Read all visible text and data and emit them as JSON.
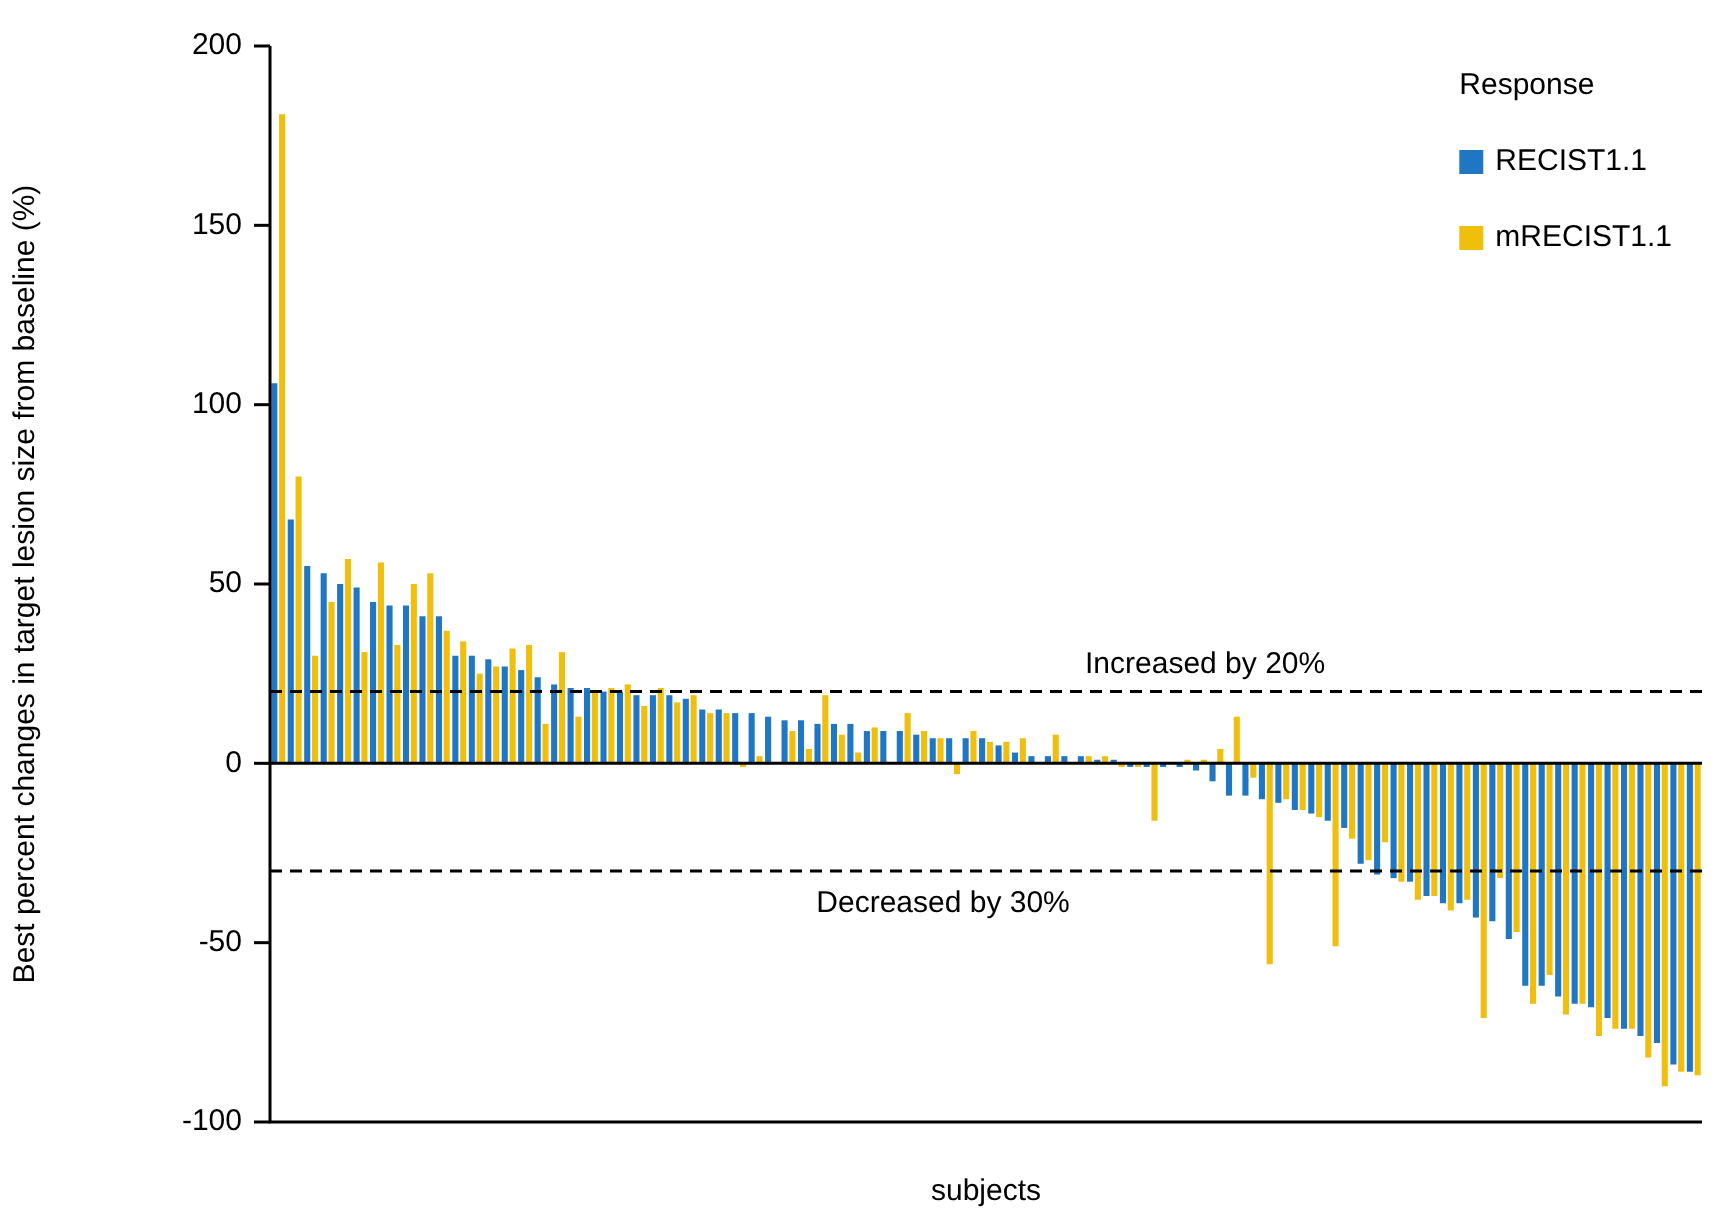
{
  "chart_data": {
    "type": "bar",
    "xlabel": "subjects",
    "ylabel": "Best percent changes in target lesion size from baseline (%)",
    "legend_title": "Response",
    "categories": [
      null,
      null,
      null,
      null,
      null,
      null,
      null,
      null,
      null,
      null,
      null,
      null,
      null,
      null,
      null,
      null,
      null,
      null,
      null,
      null,
      null,
      null,
      null,
      null,
      null,
      null,
      null,
      null,
      null,
      null,
      null,
      null,
      null,
      null,
      null,
      null,
      null,
      null,
      null,
      null,
      null,
      null,
      null,
      null,
      null,
      null,
      null,
      null,
      null,
      null,
      null,
      null,
      null,
      null,
      null,
      null,
      null,
      null,
      null,
      null,
      null,
      null,
      null,
      null,
      null,
      null,
      null,
      null,
      null,
      null,
      null,
      null,
      null,
      null,
      null,
      null,
      null,
      null,
      null,
      null,
      null,
      null,
      null,
      null,
      null,
      null,
      null
    ],
    "series": [
      {
        "name": "RECIST1.1",
        "color": "#1f77c4",
        "values": [
          106,
          68,
          55,
          53,
          50,
          49,
          45,
          44,
          44,
          41,
          41,
          30,
          30,
          29,
          27,
          26,
          24,
          22,
          21,
          21,
          20,
          20,
          19,
          19,
          19,
          18,
          15,
          15,
          14,
          14,
          13,
          12,
          12,
          11,
          11,
          11,
          9,
          9,
          9,
          8,
          7,
          7,
          7,
          7,
          5,
          3,
          2,
          2,
          2,
          2,
          1,
          1,
          -1,
          -1,
          -1,
          -1,
          -2,
          -5,
          -9,
          -9,
          -10,
          -11,
          -13,
          -14,
          -16,
          -18,
          -28,
          -31,
          -32,
          -33,
          -37,
          -39,
          -39,
          -43,
          -44,
          -49,
          -62,
          -62,
          -65,
          -67,
          -68,
          -71,
          -74,
          -76,
          -78,
          -84,
          -86
        ]
      },
      {
        "name": "mRECIST1.1",
        "color": "#f0be0c",
        "values": [
          181,
          80,
          30,
          45,
          57,
          31,
          56,
          33,
          50,
          53,
          37,
          34,
          25,
          27,
          32,
          33,
          11,
          31,
          13,
          20,
          21,
          22,
          16,
          21,
          17,
          19,
          14,
          14,
          -1,
          2,
          null,
          9,
          4,
          19,
          8,
          3,
          10,
          null,
          14,
          9,
          7,
          -3,
          9,
          6,
          6,
          7,
          null,
          8,
          null,
          2,
          2,
          -1,
          -1,
          -16,
          null,
          1,
          1,
          4,
          13,
          -4,
          -56,
          -10,
          -13,
          -15,
          -51,
          -21,
          -27,
          -22,
          -33,
          -38,
          -37,
          -41,
          -38,
          -71,
          -32,
          -47,
          -67,
          -59,
          -70,
          -67,
          -76,
          -74,
          -74,
          -82,
          -90,
          -86,
          -87
        ]
      }
    ],
    "ylim": [
      -100,
      200
    ],
    "yticks": [
      -100,
      -50,
      0,
      50,
      100,
      150,
      200
    ],
    "grid": false,
    "legend": "top right",
    "ref_lines": [
      {
        "axis": "y",
        "value": 20,
        "label": "Increased by 20%",
        "line_style": "dashed",
        "color": "#000000"
      },
      {
        "axis": "y",
        "value": -30,
        "label": "Decreased by 30%",
        "line_style": "dashed",
        "color": "#000000"
      },
      {
        "axis": "y",
        "value": 0,
        "label": null,
        "line_style": "solid",
        "color": "#000000"
      }
    ]
  }
}
